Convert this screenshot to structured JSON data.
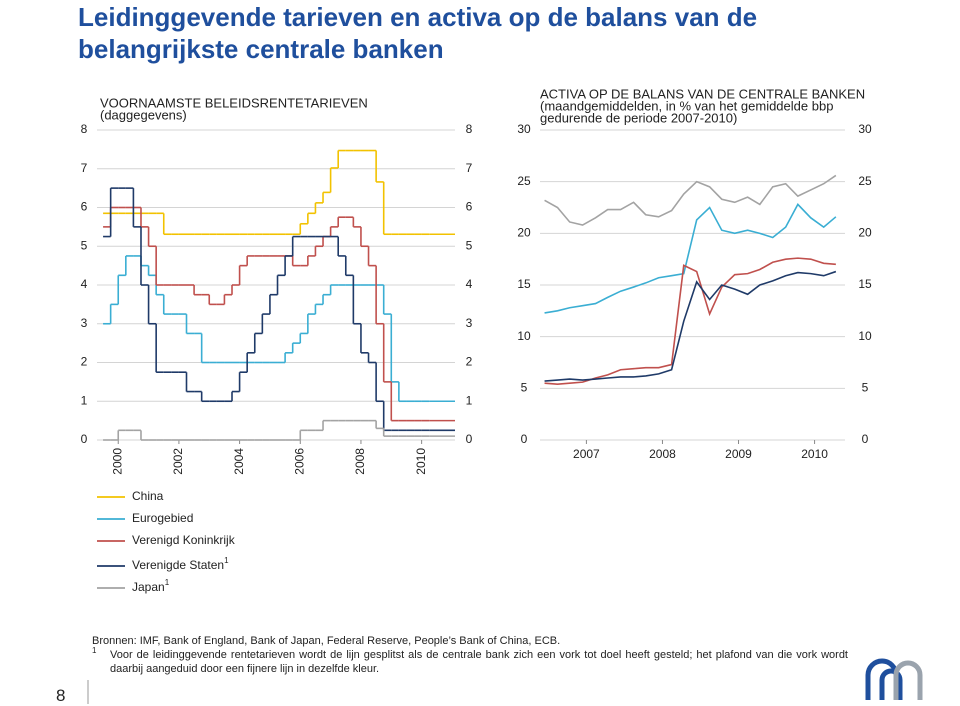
{
  "header": {
    "title_lines": [
      "Leidinggevende tarieven en activa op de balans van de",
      "belangrijkste centrale banken"
    ]
  },
  "chart_data": [
    {
      "type": "line",
      "step": true,
      "title": "VOORNAAMSTE BELEIDSRENTETARIEVEN",
      "subtitle": [
        "(daggegevens)"
      ],
      "x": [
        1999.5,
        1999.75,
        2000,
        2000.25,
        2000.5,
        2000.75,
        2001,
        2001.25,
        2001.5,
        2001.75,
        2002,
        2002.25,
        2002.5,
        2002.75,
        2003,
        2003.25,
        2003.5,
        2003.75,
        2004,
        2004.25,
        2004.5,
        2004.75,
        2005,
        2005.25,
        2005.5,
        2005.75,
        2006,
        2006.25,
        2006.5,
        2006.75,
        2007,
        2007.25,
        2007.5,
        2007.75,
        2008,
        2008.25,
        2008.5,
        2008.75,
        2009,
        2009.25,
        2009.5,
        2009.75,
        2010,
        2010.25
      ],
      "xlim": [
        1999.3,
        2011.1
      ],
      "xticks": [
        2000,
        2002,
        2004,
        2006,
        2008,
        2010
      ],
      "ylim": [
        0,
        8
      ],
      "yticks": [
        0,
        1,
        2,
        3,
        4,
        5,
        6,
        7,
        8
      ],
      "grid": true,
      "series": [
        {
          "name": "China",
          "color": "#f2c200",
          "values": [
            5.85,
            5.85,
            5.85,
            5.85,
            5.85,
            5.85,
            5.85,
            5.85,
            5.31,
            5.31,
            5.31,
            5.31,
            5.31,
            5.31,
            5.31,
            5.31,
            5.31,
            5.31,
            5.31,
            5.31,
            5.31,
            5.31,
            5.31,
            5.31,
            5.31,
            5.31,
            5.58,
            5.85,
            6.12,
            6.39,
            7.02,
            7.47,
            7.47,
            7.47,
            7.47,
            7.47,
            6.66,
            5.31,
            5.31,
            5.31,
            5.31,
            5.31,
            5.31,
            5.31
          ]
        },
        {
          "name": "Eurogebied",
          "color": "#3aaed3",
          "values": [
            3.0,
            3.5,
            4.25,
            4.75,
            4.75,
            4.5,
            4.25,
            3.75,
            3.25,
            3.25,
            3.25,
            2.75,
            2.75,
            2.0,
            2.0,
            2.0,
            2.0,
            2.0,
            2.0,
            2.0,
            2.0,
            2.0,
            2.0,
            2.0,
            2.25,
            2.5,
            2.75,
            3.25,
            3.5,
            3.75,
            4.0,
            4.0,
            4.0,
            4.0,
            4.0,
            4.0,
            4.0,
            3.25,
            1.5,
            1.0,
            1.0,
            1.0,
            1.0,
            1.0
          ]
        },
        {
          "name": "Verenigd Koninkrijk",
          "color": "#c0504d",
          "values": [
            5.5,
            6.0,
            6.0,
            6.0,
            6.0,
            5.5,
            5.0,
            4.0,
            4.0,
            4.0,
            4.0,
            4.0,
            3.75,
            3.75,
            3.5,
            3.5,
            3.75,
            4.0,
            4.5,
            4.75,
            4.75,
            4.75,
            4.75,
            4.75,
            4.75,
            4.5,
            4.5,
            4.75,
            5.0,
            5.25,
            5.5,
            5.75,
            5.75,
            5.5,
            5.0,
            4.5,
            3.0,
            1.5,
            0.5,
            0.5,
            0.5,
            0.5,
            0.5,
            0.5
          ]
        },
        {
          "name": "Verenigde Staten",
          "footnote_ref": "1",
          "color": "#1f3a68",
          "values": [
            5.25,
            6.5,
            6.5,
            6.5,
            5.5,
            4.0,
            3.0,
            1.75,
            1.75,
            1.75,
            1.75,
            1.25,
            1.25,
            1.0,
            1.0,
            1.0,
            1.0,
            1.25,
            1.75,
            2.25,
            2.75,
            3.25,
            3.75,
            4.25,
            4.75,
            5.25,
            5.25,
            5.25,
            5.25,
            5.25,
            5.25,
            4.75,
            4.25,
            3.0,
            2.25,
            2.0,
            1.0,
            0.25,
            0.25,
            0.25,
            0.25,
            0.25,
            0.25,
            0.25
          ]
        },
        {
          "name": "Japan",
          "footnote_ref": "1",
          "color": "#a3a3a3",
          "values": [
            0,
            0,
            0.25,
            0.25,
            0.25,
            0,
            0,
            0,
            0,
            0,
            0,
            0,
            0,
            0,
            0,
            0,
            0,
            0,
            0,
            0,
            0,
            0,
            0,
            0,
            0,
            0,
            0.25,
            0.25,
            0.25,
            0.5,
            0.5,
            0.5,
            0.5,
            0.5,
            0.5,
            0.5,
            0.3,
            0.1,
            0.1,
            0.1,
            0.1,
            0.1,
            0.1,
            0.1
          ]
        }
      ]
    },
    {
      "type": "line",
      "title": "ACTIVA OP DE BALANS VAN DE CENTRALE BANKEN",
      "subtitle": [
        "(maandgemiddelden, in % van het gemiddelde bbp",
        "gedurende de periode 2007-2010)"
      ],
      "x": [
        2006.45,
        2006.62,
        2006.78,
        2006.95,
        2007.12,
        2007.28,
        2007.45,
        2007.62,
        2007.78,
        2007.95,
        2008.12,
        2008.28,
        2008.45,
        2008.62,
        2008.78,
        2008.95,
        2009.12,
        2009.28,
        2009.45,
        2009.62,
        2009.78,
        2009.95,
        2010.12,
        2010.28
      ],
      "xlim": [
        2006.39,
        2010.4
      ],
      "xticks": [
        2007,
        2008,
        2009,
        2010
      ],
      "ylim": [
        0,
        30
      ],
      "yticks": [
        0,
        5,
        10,
        15,
        20,
        25,
        30
      ],
      "grid": true,
      "series": [
        {
          "color": "#a3a3a3",
          "values": [
            23.2,
            22.5,
            21.1,
            20.8,
            21.5,
            22.3,
            22.3,
            23.0,
            21.8,
            21.6,
            22.2,
            23.8,
            25.0,
            24.5,
            23.3,
            23.0,
            23.5,
            22.8,
            24.5,
            24.8,
            23.6,
            24.2,
            24.8,
            25.6
          ]
        },
        {
          "color": "#3aaed3",
          "values": [
            12.3,
            12.5,
            12.8,
            13.0,
            13.2,
            13.8,
            14.4,
            14.8,
            15.2,
            15.7,
            15.9,
            16.1,
            21.3,
            22.5,
            20.3,
            20.0,
            20.3,
            20.0,
            19.6,
            20.6,
            22.8,
            21.5,
            20.6,
            21.6
          ]
        },
        {
          "color": "#c0504d",
          "values": [
            5.5,
            5.4,
            5.5,
            5.6,
            6.0,
            6.3,
            6.8,
            6.9,
            7.0,
            7.0,
            7.3,
            16.9,
            16.3,
            12.2,
            14.8,
            16.0,
            16.1,
            16.5,
            17.2,
            17.5,
            17.6,
            17.5,
            17.1,
            17.0
          ]
        },
        {
          "color": "#1f3a68",
          "values": [
            5.7,
            5.8,
            5.9,
            5.8,
            5.9,
            6.0,
            6.1,
            6.1,
            6.2,
            6.4,
            6.8,
            11.5,
            15.3,
            13.6,
            15.0,
            14.6,
            14.1,
            15.0,
            15.4,
            15.9,
            16.2,
            16.1,
            15.9,
            16.3
          ]
        }
      ]
    }
  ],
  "sources": "Bronnen: IMF, Bank of England, Bank of Japan, Federal Reserve, People’s Bank of China, ECB.",
  "footnote": {
    "marker": "1",
    "text": "Voor de leidinggevende rentetarieven wordt de lijn gesplitst als de centrale bank zich een vork tot doel heeft gesteld; het plafond van die vork wordt daarbij aangeduid door een fijnere lijn in dezelfde kleur."
  },
  "page_number": "8"
}
